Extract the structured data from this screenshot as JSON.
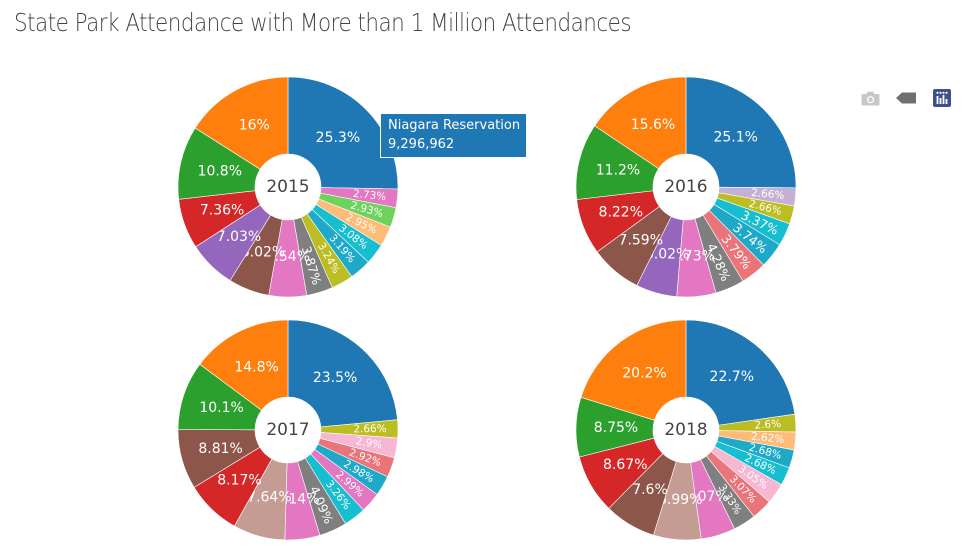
{
  "title": "State Park Attendance with More than 1 Million Attendances",
  "modebar": {
    "icons": [
      "camera-icon",
      "tag-icon",
      "plotly-logo-icon"
    ]
  },
  "hover": {
    "name": "Niagara Reservation",
    "value": "9,296,962",
    "color": "#1f77b4"
  },
  "chart_data": [
    {
      "type": "pie",
      "hole": true,
      "center_label": "2015",
      "slices": [
        {
          "label": "25.3%",
          "value": 25.3,
          "color": "#1f77b4"
        },
        {
          "label": "2.73%",
          "value": 2.73,
          "color": "#e377c2"
        },
        {
          "label": "2.93%",
          "value": 2.93,
          "color": "#6ed25c"
        },
        {
          "label": "2.95%",
          "value": 2.95,
          "color": "#ffbb78"
        },
        {
          "label": "3.08%",
          "value": 3.08,
          "color": "#17becf"
        },
        {
          "label": "3.19%",
          "value": 3.19,
          "color": "#1fa9c9"
        },
        {
          "label": "3.24%",
          "value": 3.24,
          "color": "#bcbd22"
        },
        {
          "label": "3.87%",
          "value": 3.87,
          "color": "#7f7f7f"
        },
        {
          "label": "5.54%",
          "value": 5.54,
          "color": "#e377c2"
        },
        {
          "label": "6.02%",
          "value": 6.02,
          "color": "#8c564b"
        },
        {
          "label": "7.03%",
          "value": 7.03,
          "color": "#9467bd"
        },
        {
          "label": "7.36%",
          "value": 7.36,
          "color": "#d62728"
        },
        {
          "label": "10.8%",
          "value": 10.8,
          "color": "#2ca02c"
        },
        {
          "label": "16%",
          "value": 16.0,
          "color": "#ff7f0e"
        }
      ]
    },
    {
      "type": "pie",
      "hole": true,
      "center_label": "2016",
      "slices": [
        {
          "label": "25.1%",
          "value": 25.1,
          "color": "#1f77b4"
        },
        {
          "label": "2.66%",
          "value": 2.66,
          "color": "#c5b0d5"
        },
        {
          "label": "2.66%",
          "value": 2.66,
          "color": "#bcbd22"
        },
        {
          "label": "3.37%",
          "value": 3.37,
          "color": "#17becf"
        },
        {
          "label": "3.74%",
          "value": 3.74,
          "color": "#1fa9c9"
        },
        {
          "label": "3.79%",
          "value": 3.79,
          "color": "#e9747a"
        },
        {
          "label": "4.28%",
          "value": 4.28,
          "color": "#7f7f7f"
        },
        {
          "label": "5.73%",
          "value": 5.73,
          "color": "#e377c2"
        },
        {
          "label": "6.02%",
          "value": 6.02,
          "color": "#9467bd"
        },
        {
          "label": "7.59%",
          "value": 7.59,
          "color": "#8c564b"
        },
        {
          "label": "8.22%",
          "value": 8.22,
          "color": "#d62728"
        },
        {
          "label": "11.2%",
          "value": 11.2,
          "color": "#2ca02c"
        },
        {
          "label": "15.6%",
          "value": 15.6,
          "color": "#ff7f0e"
        }
      ]
    },
    {
      "type": "pie",
      "hole": true,
      "center_label": "2017",
      "slices": [
        {
          "label": "23.5%",
          "value": 23.5,
          "color": "#1f77b4"
        },
        {
          "label": "2.66%",
          "value": 2.66,
          "color": "#bcbd22"
        },
        {
          "label": "2.9%",
          "value": 2.9,
          "color": "#f7b6d2"
        },
        {
          "label": "2.92%",
          "value": 2.92,
          "color": "#e9747a"
        },
        {
          "label": "2.98%",
          "value": 2.98,
          "color": "#1fa9c9"
        },
        {
          "label": "2.99%",
          "value": 2.99,
          "color": "#e377c2"
        },
        {
          "label": "3.26%",
          "value": 3.26,
          "color": "#17becf"
        },
        {
          "label": "4.09%",
          "value": 4.09,
          "color": "#7f7f7f"
        },
        {
          "label": "5.14%",
          "value": 5.14,
          "color": "#e377c2"
        },
        {
          "label": "7.64%",
          "value": 7.64,
          "color": "#c49c94"
        },
        {
          "label": "8.17%",
          "value": 8.17,
          "color": "#d62728"
        },
        {
          "label": "8.81%",
          "value": 8.81,
          "color": "#8c564b"
        },
        {
          "label": "10.1%",
          "value": 10.1,
          "color": "#2ca02c"
        },
        {
          "label": "14.8%",
          "value": 14.8,
          "color": "#ff7f0e"
        }
      ]
    },
    {
      "type": "pie",
      "hole": true,
      "center_label": "2018",
      "slices": [
        {
          "label": "22.7%",
          "value": 22.7,
          "color": "#1f77b4"
        },
        {
          "label": "2.6%",
          "value": 2.6,
          "color": "#bcbd22"
        },
        {
          "label": "2.62%",
          "value": 2.62,
          "color": "#ffbb78"
        },
        {
          "label": "2.68%",
          "value": 2.68,
          "color": "#1fa9c9"
        },
        {
          "label": "2.68%",
          "value": 2.68,
          "color": "#17becf"
        },
        {
          "label": "3.05%",
          "value": 3.05,
          "color": "#f7b6d2"
        },
        {
          "label": "3.07%",
          "value": 3.07,
          "color": "#e9747a"
        },
        {
          "label": "3.33%",
          "value": 3.33,
          "color": "#7f7f7f"
        },
        {
          "label": "5.07%",
          "value": 5.07,
          "color": "#e377c2"
        },
        {
          "label": "6.99%",
          "value": 6.99,
          "color": "#c49c94"
        },
        {
          "label": "7.6%",
          "value": 7.6,
          "color": "#8c564b"
        },
        {
          "label": "8.67%",
          "value": 8.67,
          "color": "#d62728"
        },
        {
          "label": "8.75%",
          "value": 8.75,
          "color": "#2ca02c"
        },
        {
          "label": "20.2%",
          "value": 20.2,
          "color": "#ff7f0e"
        }
      ]
    }
  ]
}
